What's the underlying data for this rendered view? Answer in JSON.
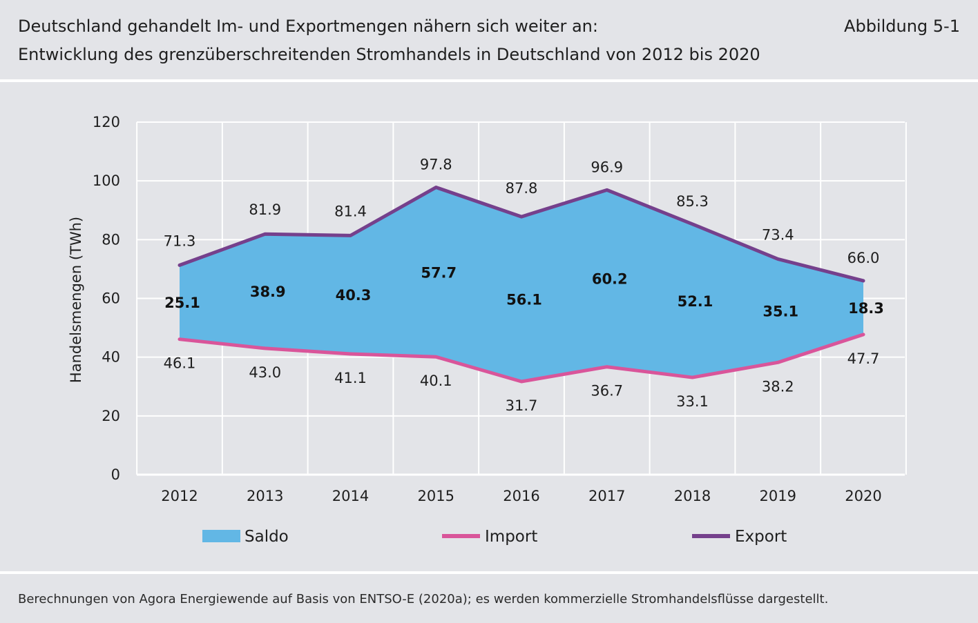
{
  "header": {
    "title_line1": "Deutschland gehandelt Im- und Exportmengen nähern sich weiter an:",
    "title_line2": "Entwicklung des grenzüberschreitenden Stromhandels in Deutschland von 2012 bis 2020",
    "figure_label": "Abbildung 5-1"
  },
  "footer": {
    "source": "Berechnungen von Agora Energiewende auf Basis von ENTSO-E (2020a); es werden kommerzielle Stromhandelsflüsse dargestellt."
  },
  "chart_data": {
    "type": "area",
    "title": "",
    "xlabel": "",
    "ylabel": "Handelsmengen (TWh)",
    "ylim": [
      0,
      120
    ],
    "yticks": [
      0,
      20,
      40,
      60,
      80,
      100,
      120
    ],
    "categories": [
      "2012",
      "2013",
      "2014",
      "2015",
      "2016",
      "2017",
      "2018",
      "2019",
      "2020"
    ],
    "grid": true,
    "legend_placement": "bottom",
    "series": [
      {
        "name": "Saldo",
        "kind": "area",
        "color": "#62b7e5",
        "values": [
          25.1,
          38.9,
          40.3,
          57.7,
          56.1,
          60.2,
          52.1,
          35.1,
          18.3
        ],
        "labels": [
          "25.1",
          "38.9",
          "40.3",
          "57.7",
          "56.1",
          "60.2",
          "52.1",
          "35.1",
          "18.3"
        ]
      },
      {
        "name": "Import",
        "kind": "line",
        "color": "#d9559a",
        "values": [
          46.1,
          43.0,
          41.1,
          40.1,
          31.7,
          36.7,
          33.1,
          38.2,
          47.7
        ],
        "labels": [
          "46.1",
          "43.0",
          "41.1",
          "40.1",
          "31.7",
          "36.7",
          "33.1",
          "38.2",
          "47.7"
        ]
      },
      {
        "name": "Export",
        "kind": "line",
        "color": "#75408c",
        "values": [
          71.3,
          81.9,
          81.4,
          97.8,
          87.8,
          96.9,
          85.3,
          73.4,
          66.0
        ],
        "labels": [
          "71.3",
          "81.9",
          "81.4",
          "97.8",
          "87.8",
          "96.9",
          "85.3",
          "73.4",
          "66.0"
        ]
      }
    ]
  }
}
